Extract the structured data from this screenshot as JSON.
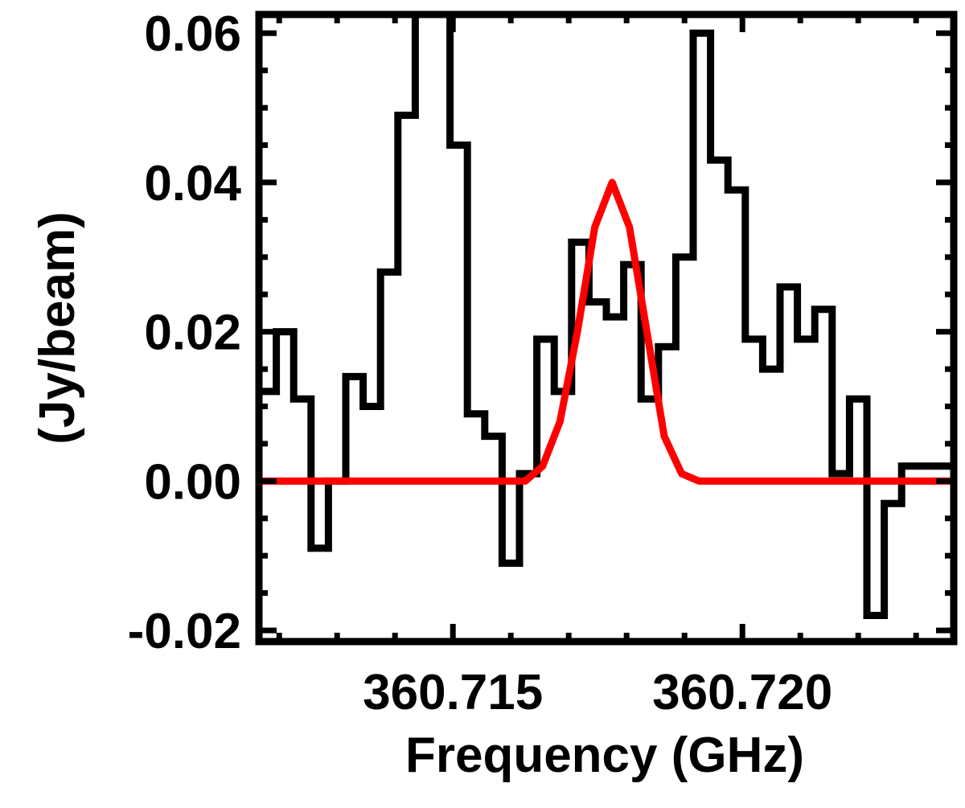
{
  "chart_data": {
    "type": "line",
    "title": "",
    "xlabel": "Frequency (GHz)",
    "ylabel": "(Jy/beam)",
    "xlim": [
      360.71165,
      360.72365
    ],
    "ylim": [
      -0.0215,
      0.0625
    ],
    "grid": false,
    "legend": "none",
    "x_ticks": [
      {
        "value": 360.715,
        "label": "360.715"
      },
      {
        "value": 360.72,
        "label": "360.720"
      }
    ],
    "y_ticks": [
      {
        "value": 0.06,
        "label": "0.06"
      },
      {
        "value": 0.04,
        "label": "0.04"
      },
      {
        "value": 0.02,
        "label": "0.02"
      },
      {
        "value": 0.0,
        "label": "0.00"
      },
      {
        "value": -0.02,
        "label": "-0.02"
      }
    ],
    "series": [
      {
        "kind": "histogram-step",
        "color": "#000000",
        "edges": [
          360.71165,
          360.71195,
          360.71225,
          360.71255,
          360.71285,
          360.71315,
          360.71345,
          360.71375,
          360.71405,
          360.71435,
          360.71465,
          360.71495,
          360.71525,
          360.71555,
          360.71585,
          360.71615,
          360.71645,
          360.71675,
          360.71705,
          360.71735,
          360.71765,
          360.71795,
          360.71825,
          360.71855,
          360.71885,
          360.71915,
          360.71945,
          360.71975,
          360.72005,
          360.72035,
          360.72065,
          360.72095,
          360.72125,
          360.72155,
          360.72185,
          360.72215,
          360.72245,
          360.72275,
          360.72305,
          360.72335,
          360.72365
        ],
        "values": [
          0.012,
          0.02,
          0.011,
          -0.009,
          0.0,
          0.014,
          0.01,
          0.028,
          0.049,
          0.07,
          0.07,
          0.045,
          0.009,
          0.006,
          -0.011,
          0.001,
          0.019,
          0.012,
          0.032,
          0.024,
          0.022,
          0.029,
          0.011,
          0.018,
          0.03,
          0.06,
          0.043,
          0.039,
          0.019,
          0.015,
          0.026,
          0.019,
          0.023,
          0.001,
          0.011,
          -0.018,
          -0.003,
          0.002,
          0.002,
          0.002
        ]
      },
      {
        "kind": "line",
        "color": "#ff0000",
        "x": [
          360.71165,
          360.71625,
          360.71655,
          360.71685,
          360.71715,
          360.71745,
          360.71775,
          360.71805,
          360.71835,
          360.71865,
          360.71895,
          360.71925,
          360.71955,
          360.71985,
          360.72015,
          360.72045,
          360.72075,
          360.72105,
          360.72135,
          360.72165,
          360.72195,
          360.72225,
          360.72255,
          360.72285,
          360.72315,
          360.72345,
          360.72365
        ],
        "y": [
          0.0,
          0.0,
          0.002,
          0.008,
          0.02,
          0.034,
          0.04,
          0.034,
          0.02,
          0.006,
          0.001,
          0.0,
          0.0,
          0.0,
          0.0,
          0.0,
          0.0,
          0.0,
          0.0,
          0.0,
          0.0,
          0.0,
          0.0,
          0.0,
          0.0,
          0.0,
          0.0
        ]
      }
    ]
  }
}
